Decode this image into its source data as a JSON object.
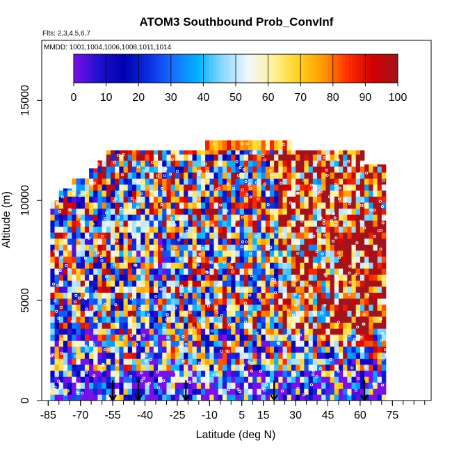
{
  "chart_data": {
    "type": "heatmap",
    "title": "ATOM3 Southbound Prob_ConvInf",
    "subtitle_flights": "Flts: 2,3,4,5,6,7",
    "subtitle_dates": "MMDD: 1001,1004,1006,1008,1011,1014",
    "xlabel": "Latitude (deg N)",
    "ylabel": "Altitude (m)",
    "xlim": [
      -88,
      93
    ],
    "ylim": [
      0,
      18000
    ],
    "x_ticks": [
      -85,
      -70,
      -55,
      -40,
      -25,
      -10,
      5,
      15,
      30,
      45,
      60,
      75
    ],
    "y_ticks": [
      0,
      5000,
      10000,
      15000
    ],
    "colorbar": {
      "min": 0,
      "max": 100,
      "ticks": [
        0,
        10,
        20,
        30,
        40,
        50,
        60,
        70,
        80,
        90,
        100
      ],
      "stops": [
        "#7a10e8",
        "#2010d0",
        "#0000b0",
        "#0a2ee0",
        "#1670ff",
        "#00b4ff",
        "#8fd9ff",
        "#f2f6ff",
        "#fff19a",
        "#ffd21e",
        "#ff9a00",
        "#ff2d00",
        "#d00000",
        "#a0141e"
      ]
    },
    "data_extent": {
      "lat_range": [
        -84,
        72
      ],
      "alt_range": [
        0,
        13000
      ]
    },
    "takeoff_landing_latitudes": [
      -55,
      -43,
      -21,
      20,
      62
    ]
  }
}
